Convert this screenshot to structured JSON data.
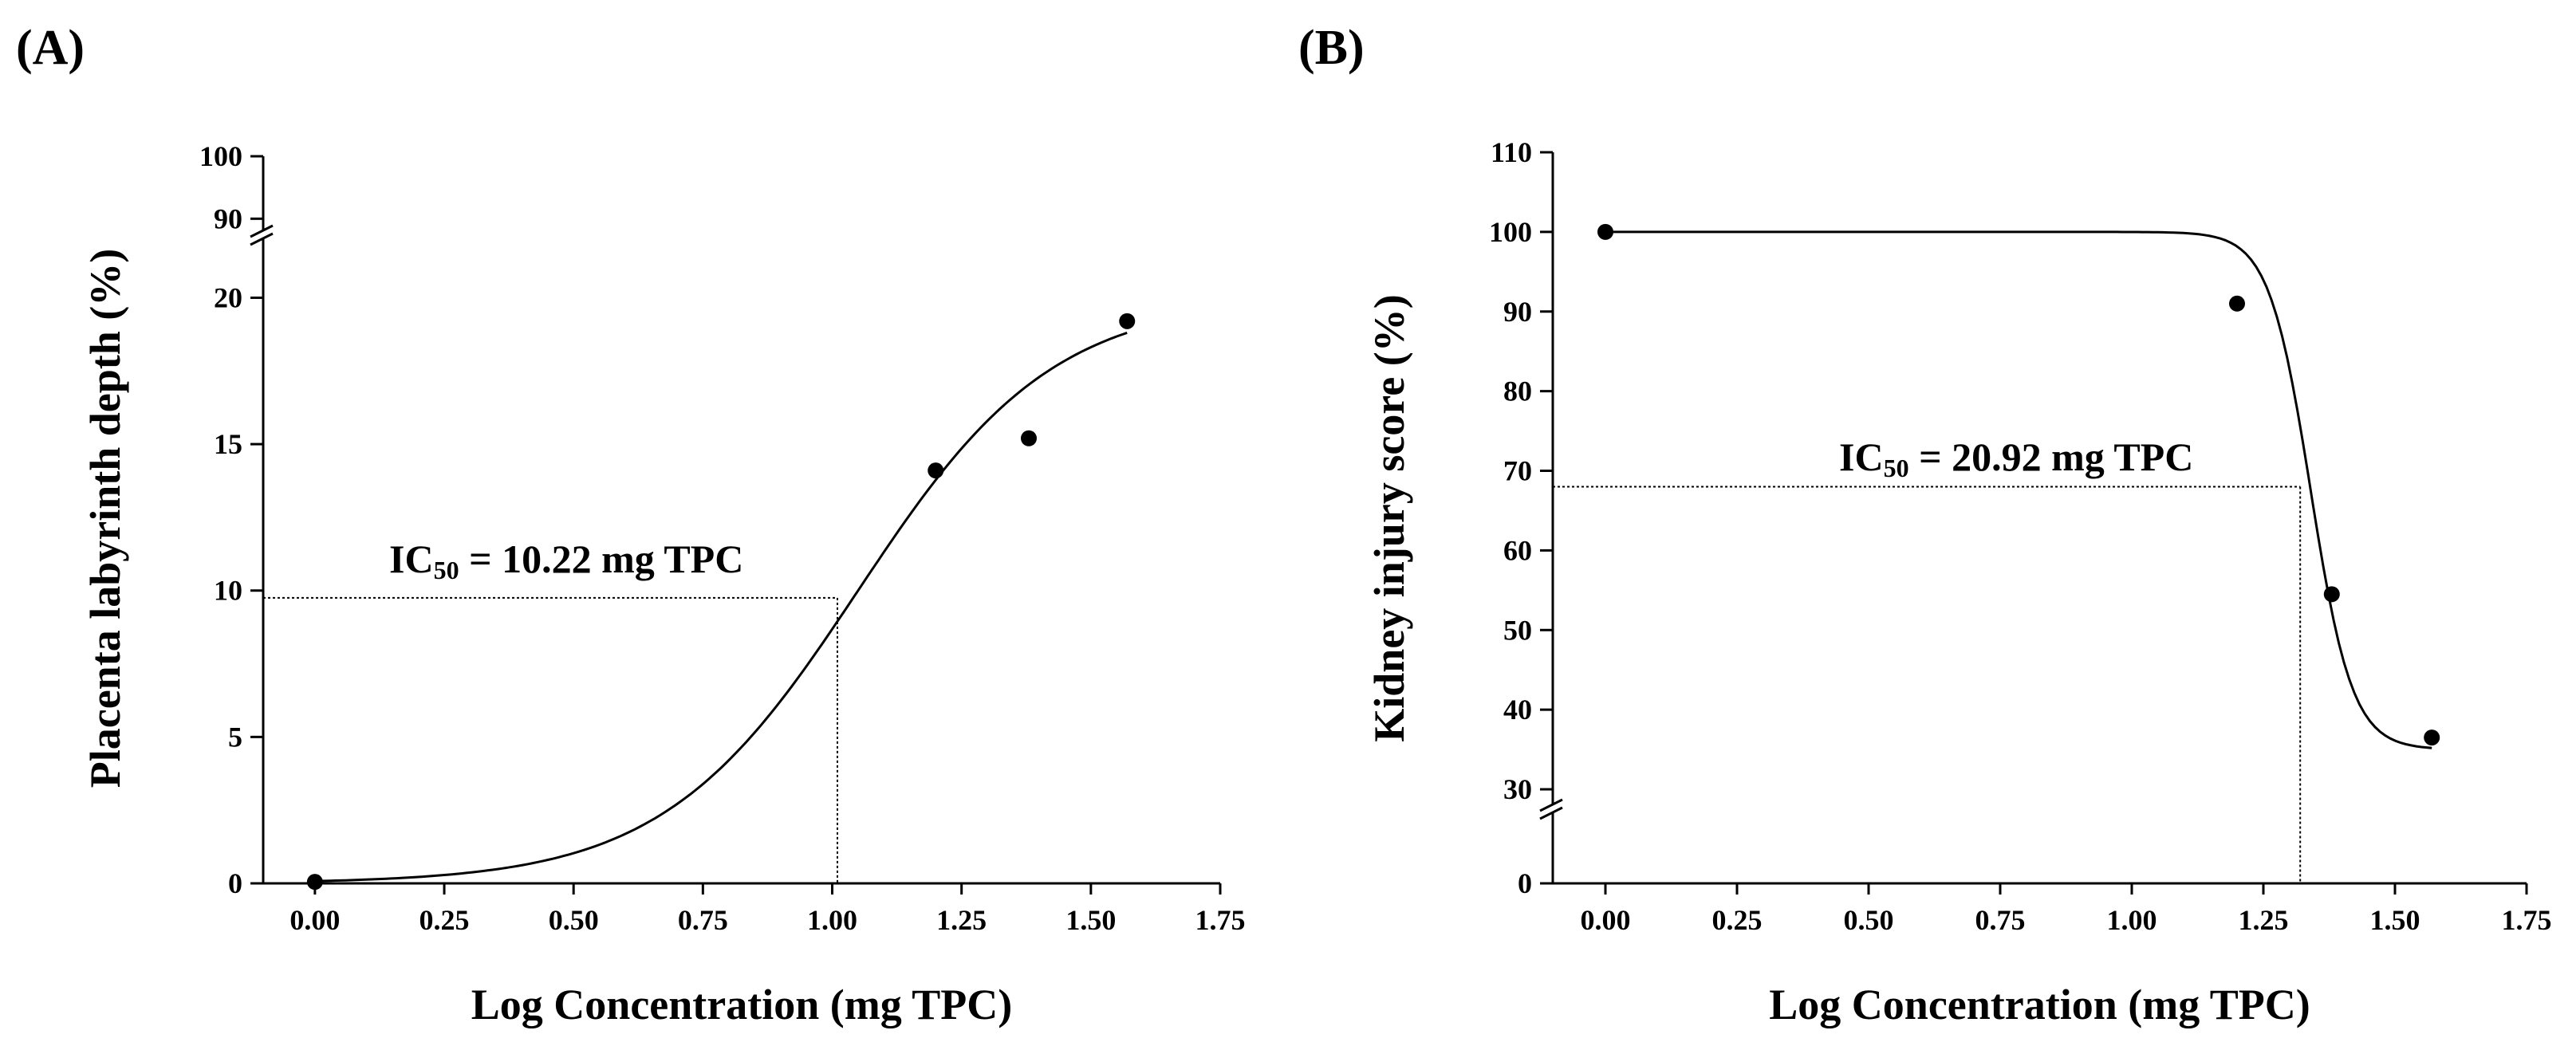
{
  "chart_data": [
    {
      "panel": "(A)",
      "type": "line",
      "xlabel": "Log Concentration (mg TPC)",
      "ylabel": "Placenta labyrinth depth (%)",
      "xlim": [
        -0.1,
        1.75
      ],
      "x_ticks": [
        0.0,
        0.25,
        0.5,
        0.75,
        1.0,
        1.25,
        1.5,
        1.75
      ],
      "x_tick_labels": [
        "0.00",
        "0.25",
        "0.50",
        "0.75",
        "1.00",
        "1.25",
        "1.50",
        "1.75"
      ],
      "axis_break": {
        "lower_ylim": [
          0,
          22
        ],
        "upper_ylim": [
          88,
          100
        ]
      },
      "y_ticks": [
        0,
        5,
        10,
        15,
        20,
        90,
        100
      ],
      "y_tick_labels": [
        "0",
        "5",
        "10",
        "15",
        "20",
        "90",
        "100"
      ],
      "points": {
        "x": [
          0.0,
          1.2,
          1.38,
          1.57
        ],
        "y": [
          0.05,
          14.1,
          15.2,
          19.2
        ]
      },
      "fit": {
        "model": "four-parameter logistic",
        "bottom": 0,
        "top": 20,
        "log_ec50": 1.05,
        "hill": 2.3,
        "x_range": [
          0.0,
          1.57
        ]
      },
      "ic50_line": {
        "x": 1.01,
        "y": 9.75
      },
      "annotation": {
        "prefix": "IC",
        "subscript": "50",
        "rest": " = 10.22 mg TPC"
      }
    },
    {
      "panel": "(B)",
      "type": "line",
      "xlabel": "Log Concentration (mg TPC)",
      "ylabel": "Kidney injury score (%)",
      "xlim": [
        -0.1,
        1.75
      ],
      "x_ticks": [
        0.0,
        0.25,
        0.5,
        0.75,
        1.0,
        1.25,
        1.5,
        1.75
      ],
      "x_tick_labels": [
        "0.00",
        "0.25",
        "0.50",
        "0.75",
        "1.00",
        "1.25",
        "1.50",
        "1.75"
      ],
      "axis_break": {
        "lower_ylim": [
          0,
          2
        ],
        "upper_ylim": [
          28,
          110
        ]
      },
      "y_ticks": [
        0,
        30,
        40,
        50,
        60,
        70,
        80,
        90,
        100,
        110
      ],
      "y_tick_labels": [
        "0",
        "30",
        "40",
        "50",
        "60",
        "70",
        "80",
        "90",
        "100",
        "110"
      ],
      "points": {
        "x": [
          0.0,
          1.2,
          1.38,
          1.57
        ],
        "y": [
          100,
          91,
          54.5,
          36.5
        ]
      },
      "fit": {
        "model": "four-parameter logistic",
        "bottom": 35,
        "top": 100,
        "log_ec50": 1.34,
        "hill": -11,
        "x_range": [
          0.0,
          1.57
        ]
      },
      "ic50_line": {
        "x": 1.32,
        "y": 68
      },
      "annotation": {
        "prefix": "IC",
        "subscript": "50",
        "rest": " = 20.92 mg TPC"
      }
    }
  ]
}
